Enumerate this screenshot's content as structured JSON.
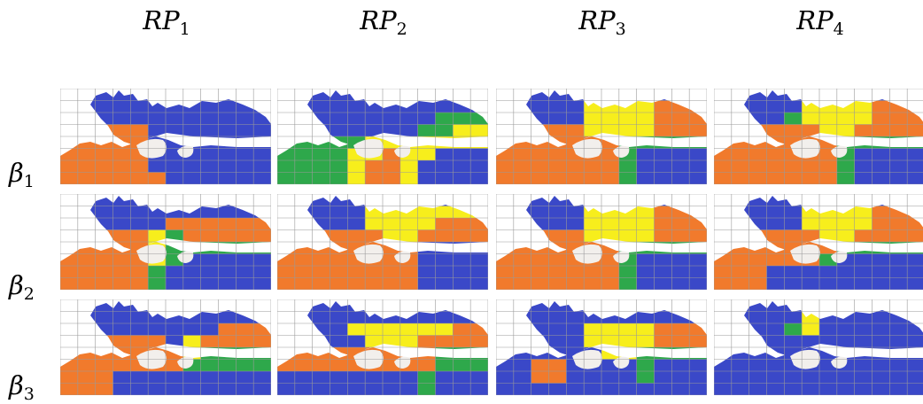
{
  "columns": [
    {
      "base": "RP",
      "sub": "1"
    },
    {
      "base": "RP",
      "sub": "2"
    },
    {
      "base": "RP",
      "sub": "3"
    },
    {
      "base": "RP",
      "sub": "4"
    }
  ],
  "rows": [
    {
      "base": "β",
      "sub": "1"
    },
    {
      "base": "β",
      "sub": "2"
    },
    {
      "base": "β",
      "sub": "3"
    }
  ],
  "colors": {
    "blue": "#3a48c8",
    "orange": "#f17a2c",
    "green": "#2ea84b",
    "yellow": "#f7ee1c",
    "land": "#f2efec",
    "grid": "#9a9a9a"
  },
  "grid_size": {
    "cols": 12,
    "rows": 8
  },
  "legend_keys": [
    "B = blue",
    "O = orange",
    "G = green",
    "Y = yellow",
    ". = unassigned"
  ],
  "panels": [
    [
      {
        "cells": [
          "BBBBBBBBBBBB",
          "BBBBBBBBBBBB",
          "BBBBBBBBBBBB",
          "OOOOOBBBBBBB",
          "OOOOOBBBBBBB",
          "OOOOOBBBBBBB",
          "OOOOOBBBBBBB",
          "OOOOOOBBBBBB"
        ]
      },
      {
        "cells": [
          "BBBBBBBBBBBB",
          "BBBBBBBBBBBB",
          "BBBBBBOOOOOO",
          "OOOOOYGOOOOO",
          "OOOOOYGGGGGG",
          "OOOOOYGBBBBB",
          "OOOOOGBBBBBB",
          "OOOOOGBBBBBB"
        ]
      },
      {
        "cells": [
          "BBBBBBBBBBBB",
          "BBBBBBBBBBBB",
          "BBBBBBBBBOOO",
          "OOOOOOBYOOOO",
          "OOOOOOOYGGGG",
          "OOOOOOOGGGGG",
          "OOOBBBBBBBBB",
          "OOOBBBBBBBBB"
        ]
      }
    ],
    [
      {
        "cells": [
          "BBBBBBBBBBBB",
          "BBBBBBBBBBBB",
          "BBBBBBBBBGGG",
          "BBBBBBBBGGYY",
          "GGGGGYYYYYYY",
          "GGGGYYOYYBBB",
          "GGGGYOOYBBBB",
          "GGGGYOOYBBBB"
        ]
      },
      {
        "cells": [
          "BBBBBBBBBBBB",
          "BBBBBYYYYYYY",
          "BBBBBYYYYOOO",
          "OOOOOOYYOOOO",
          "OOOOOOOOBBBB",
          "OOOOOOOOBBBB",
          "OOOOOOOOBBBB",
          "OOOOOOOOBBBB"
        ]
      },
      {
        "cells": [
          "BBBBBBBBBBBB",
          "BBBBBBBBBBBB",
          "BBBBYYYYYYOO",
          "BBBBBYYYOOOO",
          "OOOOOOOOOGGG",
          "OOOOOOOOOGGG",
          "BBBBBBBBGBBB",
          "BBBBBBBBGBBB"
        ]
      }
    ],
    [
      {
        "cells": [
          "BBBBBBBBBBBB",
          "BBBBBYYYYOOO",
          "BBBBBYYYYOOO",
          "OOOOOYYYYOOO",
          "OOOOOOOGGGGG",
          "OOOOOOOGBBBB",
          "OOOOOOOGBBBB",
          "OOOOOOOGBBBB"
        ]
      },
      {
        "cells": [
          "BBBBBBBBBBBB",
          "BBBBBYYYYOOO",
          "BBBBBYYYYOOO",
          "OOOOOYYYYOOO",
          "OOOOOOOGGGGG",
          "OOOOOOOGBBBB",
          "OOOOOOOGBBBB",
          "OOOOOOOGBBBB"
        ]
      },
      {
        "cells": [
          "BBBBBBBBBBBB",
          "BBBBBBBBBBBB",
          "BBBBBYYYYOOO",
          "BBBBBYYYYOOO",
          "BBBBBBYYGGGG",
          "BBOOBBBBGBBB",
          "BBOOBBBBGBBB",
          "BBBBBBBBBBBB"
        ]
      }
    ],
    [
      {
        "cells": [
          "BBBBBBBBBBBB",
          "BBBBBYYYYOOO",
          "BBBBGYYYYOOO",
          "OOOOOOYYOOOO",
          "OOOOOOOGGGGG",
          "OOOOOOOGBBBB",
          "OOOOOOOGBBBB",
          "OOOOOOOGBBBB"
        ]
      },
      {
        "cells": [
          "BBBBBBBBBBBB",
          "BBBBBYYYYOOO",
          "BBBBBYYYYOOO",
          "OOOOOOYYOOOO",
          "OOOOOOOGGGGG",
          "OOOOOOGBBBBB",
          "OOOBBBBBBBBB",
          "OOOBBBBBBBBB"
        ]
      },
      {
        "cells": [
          "BBBBBBBBBBBB",
          "BBBBBYBBBBBB",
          "BBBBGYBBBBBB",
          "BBBBBBBBBBBB",
          "BBBBBBBBBBBB",
          "BBBBBBBBBBBB",
          "BBBBBBBBBBBB",
          "BBBBBBBBBBBB"
        ]
      }
    ]
  ]
}
